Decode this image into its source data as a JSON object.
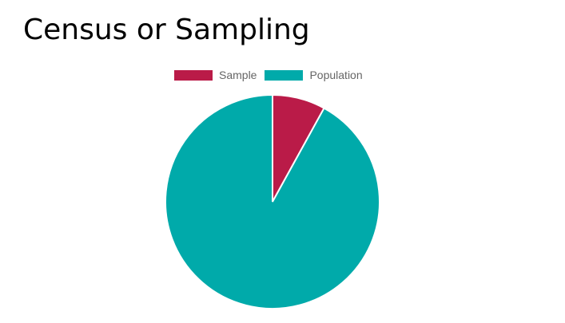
{
  "page": {
    "title": "Census or Sampling"
  },
  "colors": {
    "sample": "#BA1B48",
    "population": "#00AAAA",
    "border": "#ffffff",
    "legend_text": "#666666"
  },
  "chart_data": {
    "type": "pie",
    "title": "",
    "categories": [
      "Sample",
      "Population"
    ],
    "values": [
      8,
      92
    ],
    "legend": {
      "position": "top",
      "items": [
        {
          "label": "Sample",
          "color": "#BA1B48"
        },
        {
          "label": "Population",
          "color": "#00AAAA"
        }
      ]
    }
  }
}
